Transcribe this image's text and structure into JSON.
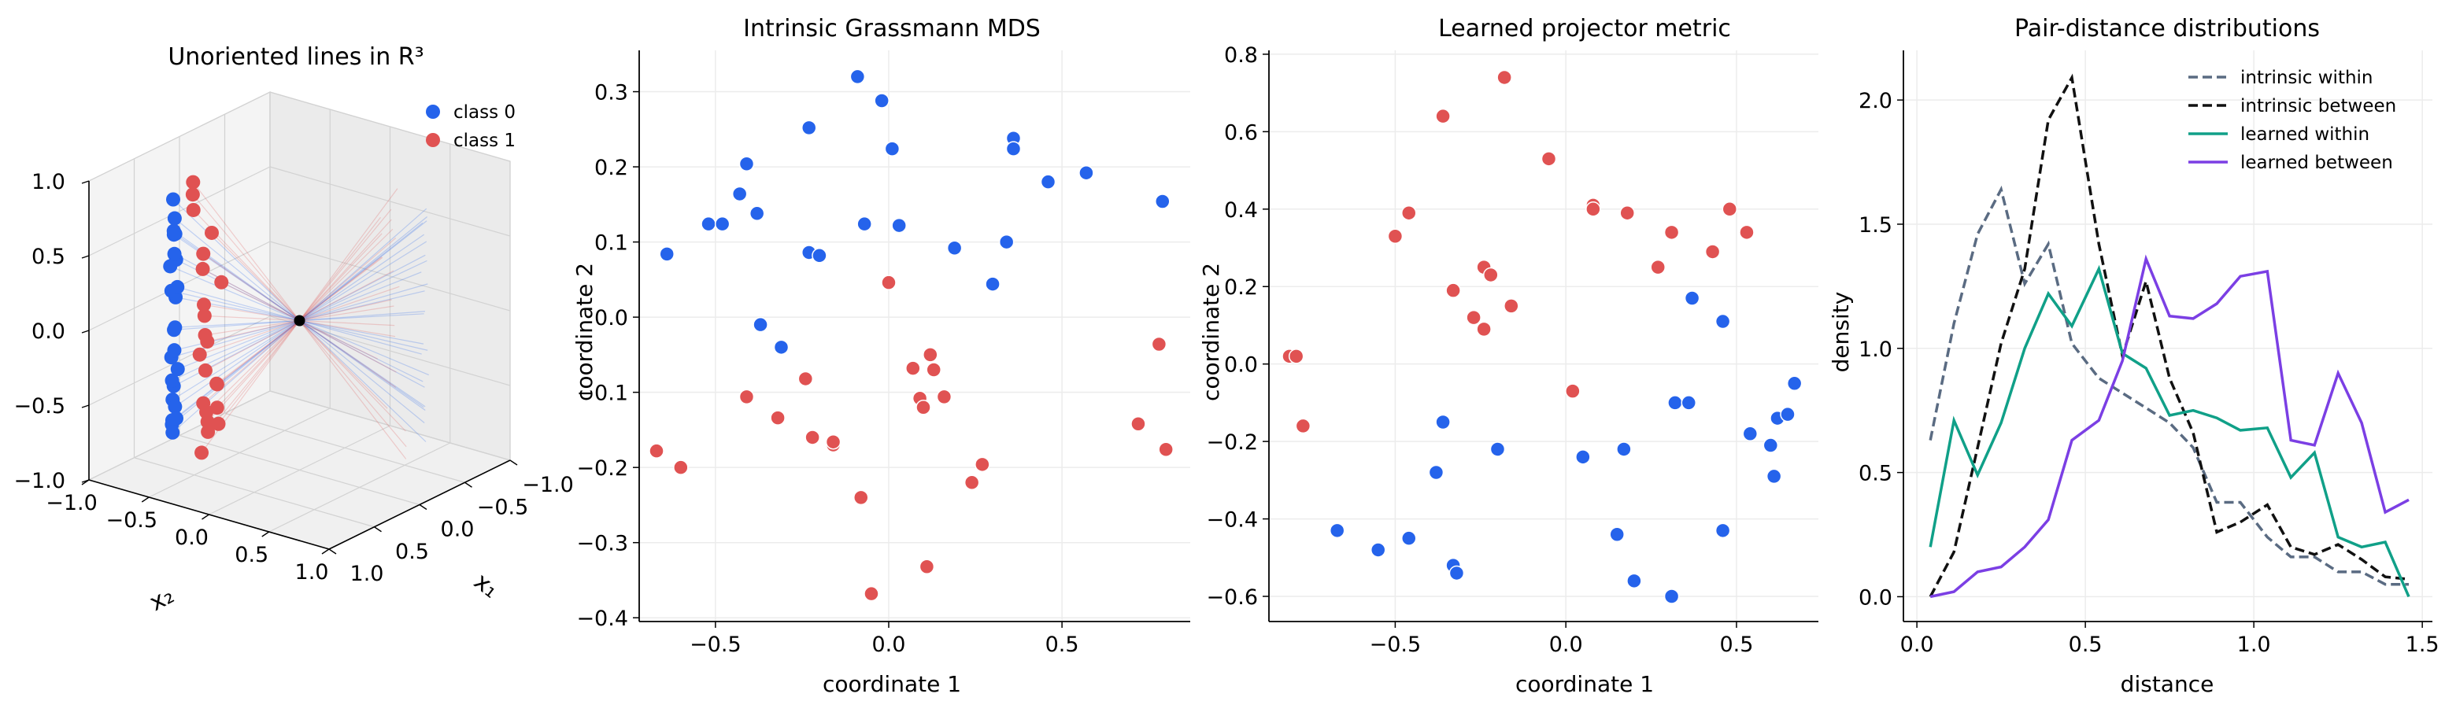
{
  "colors": {
    "class0": "#2563eb",
    "class1": "#e05252",
    "intrinsic_within": "#5a6b82",
    "intrinsic_between": "#111111",
    "learned_within": "#10a088",
    "learned_between": "#7b3fe4",
    "grid": "#ececec"
  },
  "chart_data": [
    {
      "type": "scatter",
      "projection": "3d",
      "title": "Unoriented lines in R³",
      "xlabel": "x₁",
      "ylabel": "x₂",
      "zlabel": "",
      "xlim": [
        -1.0,
        1.0
      ],
      "ylim": [
        -1.0,
        1.0
      ],
      "zlim": [
        -1.0,
        1.0
      ],
      "ticks": [
        "−1.0",
        "−0.5",
        "0.0",
        "0.5",
        "1.0"
      ],
      "legend": [
        "class 0",
        "class 1"
      ],
      "legend_position": "top-right",
      "origin": [
        0,
        0,
        0
      ],
      "series": [
        {
          "name": "class 0",
          "points": [
            [
              -0.65,
              -0.55,
              0.75
            ],
            [
              -0.55,
              -0.62,
              0.6
            ],
            [
              -0.7,
              -0.5,
              0.5
            ],
            [
              -0.5,
              -0.7,
              0.35
            ],
            [
              -0.6,
              -0.58,
              0.2
            ],
            [
              -0.75,
              -0.48,
              0.05
            ],
            [
              -0.5,
              -0.66,
              -0.05
            ],
            [
              -0.62,
              -0.6,
              -0.2
            ],
            [
              -0.7,
              -0.52,
              -0.35
            ],
            [
              -0.48,
              -0.7,
              -0.42
            ],
            [
              -0.58,
              -0.62,
              -0.5
            ],
            [
              -0.68,
              -0.55,
              -0.62
            ],
            [
              -0.45,
              -0.72,
              -0.7
            ],
            [
              -0.6,
              -0.6,
              0.85
            ],
            [
              -0.52,
              -0.65,
              0.45
            ],
            [
              -0.72,
              -0.5,
              -0.1
            ],
            [
              -0.55,
              -0.6,
              -0.3
            ],
            [
              -0.42,
              -0.75,
              0.15
            ],
            [
              -0.66,
              -0.52,
              0.3
            ],
            [
              -0.5,
              -0.66,
              -0.58
            ],
            [
              -0.3,
              -0.8,
              -0.75
            ],
            [
              -0.62,
              -0.58,
              0.65
            ],
            [
              -0.58,
              -0.62,
              -0.72
            ],
            [
              -0.46,
              -0.7,
              0.55
            ]
          ]
        },
        {
          "name": "class 1",
          "points": [
            [
              -0.45,
              -0.55,
              0.85
            ],
            [
              -0.35,
              -0.62,
              0.7
            ],
            [
              -0.4,
              -0.5,
              0.45
            ],
            [
              -0.3,
              -0.58,
              0.3
            ],
            [
              -0.42,
              -0.48,
              0.12
            ],
            [
              -0.32,
              -0.55,
              0.0
            ],
            [
              -0.38,
              -0.5,
              -0.1
            ],
            [
              -0.25,
              -0.58,
              -0.2
            ],
            [
              -0.35,
              -0.52,
              -0.35
            ],
            [
              -0.28,
              -0.48,
              -0.45
            ],
            [
              -0.4,
              -0.5,
              -0.55
            ],
            [
              -0.3,
              -0.55,
              -0.65
            ],
            [
              -0.22,
              -0.6,
              -0.75
            ],
            [
              -0.15,
              -0.65,
              -0.85
            ],
            [
              -0.28,
              -0.52,
              0.55
            ],
            [
              -0.36,
              -0.56,
              -0.25
            ],
            [
              -0.2,
              -0.5,
              0.2
            ],
            [
              -0.3,
              -0.46,
              -0.6
            ],
            [
              -0.1,
              -0.6,
              -0.8
            ],
            [
              -0.38,
              -0.6,
              0.9
            ],
            [
              -0.18,
              -0.55,
              -0.5
            ],
            [
              -0.26,
              -0.62,
              -0.95
            ]
          ]
        }
      ],
      "grid": true
    },
    {
      "type": "scatter",
      "title": "Intrinsic Grassmann MDS",
      "xlabel": "coordinate 1",
      "ylabel": "coordinate 2",
      "xlim": [
        -0.72,
        0.87
      ],
      "ylim": [
        -0.405,
        0.355
      ],
      "xticks": [
        -0.5,
        0.0,
        0.5
      ],
      "yticks": [
        -0.4,
        -0.3,
        -0.2,
        -0.1,
        0.0,
        0.1,
        0.2,
        0.3
      ],
      "grid": true,
      "series": [
        {
          "name": "class 0",
          "points": [
            [
              -0.09,
              0.32
            ],
            [
              -0.02,
              0.288
            ],
            [
              -0.64,
              0.084
            ],
            [
              -0.52,
              0.124
            ],
            [
              -0.48,
              0.124
            ],
            [
              -0.41,
              0.204
            ],
            [
              -0.43,
              0.164
            ],
            [
              -0.38,
              0.138
            ],
            [
              -0.23,
              0.252
            ],
            [
              -0.23,
              0.086
            ],
            [
              -0.2,
              0.082
            ],
            [
              -0.07,
              0.124
            ],
            [
              0.01,
              0.224
            ],
            [
              0.03,
              0.122
            ],
            [
              0.19,
              0.092
            ],
            [
              0.3,
              0.044
            ],
            [
              0.34,
              0.1
            ],
            [
              0.36,
              0.238
            ],
            [
              0.36,
              0.224
            ],
            [
              0.46,
              0.18
            ],
            [
              0.57,
              0.192
            ],
            [
              0.79,
              0.154
            ],
            [
              -0.37,
              -0.01
            ],
            [
              -0.31,
              -0.04
            ]
          ]
        },
        {
          "name": "class 1",
          "points": [
            [
              0.0,
              0.046
            ],
            [
              -0.67,
              -0.178
            ],
            [
              -0.6,
              -0.2
            ],
            [
              -0.41,
              -0.106
            ],
            [
              -0.32,
              -0.134
            ],
            [
              -0.24,
              -0.082
            ],
            [
              -0.22,
              -0.16
            ],
            [
              -0.16,
              -0.17
            ],
            [
              -0.16,
              -0.166
            ],
            [
              -0.08,
              -0.24
            ],
            [
              -0.05,
              -0.368
            ],
            [
              0.07,
              -0.068
            ],
            [
              0.09,
              -0.108
            ],
            [
              0.1,
              -0.12
            ],
            [
              0.12,
              -0.05
            ],
            [
              0.13,
              -0.07
            ],
            [
              0.16,
              -0.106
            ],
            [
              0.11,
              -0.332
            ],
            [
              0.24,
              -0.22
            ],
            [
              0.27,
              -0.196
            ],
            [
              0.72,
              -0.142
            ],
            [
              0.78,
              -0.036
            ],
            [
              0.8,
              -0.176
            ]
          ]
        }
      ]
    },
    {
      "type": "scatter",
      "title": "Learned projector metric",
      "xlabel": "coordinate 1",
      "ylabel": "coordinate 2",
      "xlim": [
        -0.87,
        0.74
      ],
      "ylim": [
        -0.665,
        0.81
      ],
      "xticks": [
        -0.5,
        0.0,
        0.5
      ],
      "yticks": [
        -0.6,
        -0.4,
        -0.2,
        0.0,
        0.2,
        0.4,
        0.6,
        0.8
      ],
      "grid": true,
      "series": [
        {
          "name": "class 0",
          "points": [
            [
              -0.67,
              -0.43
            ],
            [
              -0.55,
              -0.48
            ],
            [
              -0.46,
              -0.45
            ],
            [
              -0.38,
              -0.28
            ],
            [
              -0.36,
              -0.15
            ],
            [
              -0.33,
              -0.52
            ],
            [
              -0.32,
              -0.54
            ],
            [
              -0.2,
              -0.22
            ],
            [
              0.05,
              -0.24
            ],
            [
              0.15,
              -0.44
            ],
            [
              0.17,
              -0.22
            ],
            [
              0.2,
              -0.56
            ],
            [
              0.31,
              -0.6
            ],
            [
              0.32,
              -0.1
            ],
            [
              0.36,
              -0.1
            ],
            [
              0.37,
              0.17
            ],
            [
              0.46,
              0.11
            ],
            [
              0.46,
              -0.43
            ],
            [
              0.54,
              -0.18
            ],
            [
              0.6,
              -0.21
            ],
            [
              0.61,
              -0.29
            ],
            [
              0.62,
              -0.14
            ],
            [
              0.65,
              -0.13
            ],
            [
              0.67,
              -0.05
            ]
          ]
        },
        {
          "name": "class 1",
          "points": [
            [
              -0.81,
              0.02
            ],
            [
              -0.79,
              0.02
            ],
            [
              -0.77,
              -0.16
            ],
            [
              -0.5,
              0.33
            ],
            [
              -0.46,
              0.39
            ],
            [
              -0.36,
              0.64
            ],
            [
              -0.33,
              0.19
            ],
            [
              -0.27,
              0.12
            ],
            [
              -0.24,
              0.25
            ],
            [
              -0.24,
              0.09
            ],
            [
              -0.22,
              0.23
            ],
            [
              -0.18,
              0.74
            ],
            [
              -0.16,
              0.15
            ],
            [
              -0.05,
              0.53
            ],
            [
              0.02,
              -0.07
            ],
            [
              0.08,
              0.41
            ],
            [
              0.08,
              0.4
            ],
            [
              0.18,
              0.39
            ],
            [
              0.27,
              0.25
            ],
            [
              0.31,
              0.34
            ],
            [
              0.43,
              0.29
            ],
            [
              0.48,
              0.4
            ],
            [
              0.53,
              0.34
            ]
          ]
        }
      ]
    },
    {
      "type": "line",
      "title": "Pair-distance distributions",
      "xlabel": "distance",
      "ylabel": "density",
      "xlim": [
        -0.04,
        1.53
      ],
      "ylim": [
        -0.1,
        2.2
      ],
      "xticks": [
        0.0,
        0.5,
        1.0,
        1.5
      ],
      "yticks": [
        0.0,
        0.5,
        1.0,
        1.5,
        2.0
      ],
      "grid": true,
      "legend_position": "top-right",
      "x": [
        0.04,
        0.11,
        0.18,
        0.25,
        0.32,
        0.39,
        0.46,
        0.54,
        0.61,
        0.68,
        0.75,
        0.82,
        0.89,
        0.96,
        1.04,
        1.11,
        1.18,
        1.25,
        1.32,
        1.39,
        1.46
      ],
      "series": [
        {
          "name": "intrinsic within",
          "style": "dashed",
          "values": [
            0.63,
            1.1,
            1.46,
            1.64,
            1.26,
            1.42,
            1.02,
            0.88,
            0.82,
            0.76,
            0.7,
            0.6,
            0.38,
            0.38,
            0.24,
            0.16,
            0.16,
            0.1,
            0.1,
            0.05,
            0.05
          ]
        },
        {
          "name": "intrinsic between",
          "style": "dashed",
          "values": [
            0.0,
            0.18,
            0.6,
            1.02,
            1.32,
            1.92,
            2.09,
            1.42,
            0.97,
            1.27,
            0.88,
            0.66,
            0.26,
            0.3,
            0.37,
            0.2,
            0.17,
            0.21,
            0.15,
            0.08,
            0.07
          ]
        },
        {
          "name": "learned within",
          "style": "solid",
          "values": [
            0.2,
            0.71,
            0.49,
            0.7,
            1.0,
            1.22,
            1.09,
            1.32,
            0.98,
            0.92,
            0.73,
            0.75,
            0.72,
            0.67,
            0.68,
            0.48,
            0.58,
            0.24,
            0.2,
            0.22,
            0.0
          ]
        },
        {
          "name": "learned between",
          "style": "solid",
          "values": [
            0.0,
            0.02,
            0.1,
            0.12,
            0.2,
            0.31,
            0.63,
            0.71,
            0.95,
            1.36,
            1.13,
            1.12,
            1.18,
            1.29,
            1.31,
            0.63,
            0.61,
            0.9,
            0.7,
            0.34,
            0.39
          ]
        }
      ]
    }
  ]
}
